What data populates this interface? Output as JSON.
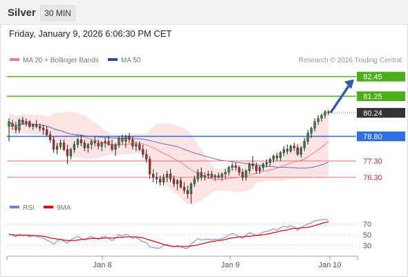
{
  "header": {
    "symbol": "Silver",
    "timeframe": "30 MIN"
  },
  "datetime": "Friday, January 9, 2026 6:06:30 PM CET",
  "legend": {
    "ma20_label": "MA 20 + Bollinger Bands",
    "ma50_label": "MA 50",
    "credit": "Research © 2026 Trading Central",
    "rsi_label": "RSI",
    "ma9_label": "9MA"
  },
  "colors": {
    "candle_up": "#2b8a3e",
    "candle_down": "#c92a2a",
    "bollinger_fill": "#fde3e3",
    "ma20": "#f08080",
    "ma50": "#5b6fb5",
    "resistance": "#4caf1a",
    "pivot": "#2f6fe0",
    "support": "#e57373",
    "last_price": "#333333",
    "rsi": "#6b86d6",
    "rsi_ma": "#dd1111",
    "arrow": "#2f5ea8"
  },
  "chart_data": [
    {
      "type": "candlestick",
      "title": "",
      "ylim": [
        75.2,
        82.9
      ],
      "x_labels": [
        "Jan 8",
        "Jan 9",
        "Jan 10"
      ],
      "levels": [
        {
          "name": "resistance-2",
          "value": 82.45,
          "label": "82.45",
          "kind": "resistance"
        },
        {
          "name": "resistance-1",
          "value": 81.25,
          "label": "81.25",
          "kind": "resistance"
        },
        {
          "name": "last-price",
          "value": 80.24,
          "label": "80.24",
          "kind": "last"
        },
        {
          "name": "pivot",
          "value": 78.8,
          "label": "78.80",
          "kind": "pivot"
        },
        {
          "name": "support-1",
          "value": 77.3,
          "label": "77.30",
          "kind": "support"
        },
        {
          "name": "support-2",
          "value": 76.3,
          "label": "76.30",
          "kind": "support"
        }
      ],
      "ohlc": [
        [
          79.4,
          79.9,
          78.5,
          79.7
        ],
        [
          79.6,
          79.8,
          79.2,
          79.4
        ],
        [
          79.4,
          79.7,
          79.0,
          79.2
        ],
        [
          79.2,
          79.9,
          79.0,
          79.8
        ],
        [
          79.8,
          80.0,
          79.5,
          79.6
        ],
        [
          79.6,
          79.9,
          79.4,
          79.7
        ],
        [
          79.7,
          79.8,
          79.3,
          79.4
        ],
        [
          79.4,
          79.6,
          79.2,
          79.5
        ],
        [
          79.5,
          79.8,
          79.3,
          79.4
        ],
        [
          79.4,
          79.6,
          79.1,
          79.3
        ],
        [
          79.3,
          79.5,
          78.9,
          79.2
        ],
        [
          79.2,
          79.4,
          78.8,
          78.9
        ],
        [
          78.9,
          79.1,
          78.4,
          78.6
        ],
        [
          78.6,
          78.8,
          77.8,
          78.0
        ],
        [
          78.0,
          78.4,
          77.7,
          78.2
        ],
        [
          78.2,
          78.6,
          78.0,
          78.4
        ],
        [
          78.4,
          78.6,
          77.9,
          78.0
        ],
        [
          78.0,
          78.3,
          77.1,
          77.6
        ],
        [
          77.6,
          78.1,
          77.4,
          78.0
        ],
        [
          78.0,
          78.5,
          77.8,
          78.3
        ],
        [
          78.3,
          78.7,
          78.1,
          78.6
        ],
        [
          78.6,
          78.9,
          78.2,
          78.4
        ],
        [
          78.4,
          78.6,
          77.9,
          78.1
        ],
        [
          78.1,
          78.4,
          77.8,
          78.3
        ],
        [
          78.3,
          78.6,
          78.0,
          78.5
        ],
        [
          78.5,
          78.8,
          78.2,
          78.4
        ],
        [
          78.4,
          78.6,
          78.0,
          78.2
        ],
        [
          78.2,
          78.5,
          77.9,
          78.4
        ],
        [
          78.4,
          78.7,
          78.1,
          78.5
        ],
        [
          78.5,
          78.8,
          78.2,
          78.3
        ],
        [
          78.3,
          78.6,
          77.9,
          78.0
        ],
        [
          78.0,
          78.4,
          77.6,
          78.3
        ],
        [
          78.3,
          78.8,
          78.1,
          78.7
        ],
        [
          78.7,
          78.9,
          78.3,
          78.5
        ],
        [
          78.5,
          78.9,
          78.1,
          78.8
        ],
        [
          78.8,
          79.0,
          78.4,
          78.6
        ],
        [
          78.6,
          78.8,
          78.0,
          78.2
        ],
        [
          78.2,
          78.5,
          77.9,
          78.3
        ],
        [
          78.3,
          78.5,
          77.9,
          78.0
        ],
        [
          78.0,
          78.3,
          77.5,
          77.7
        ],
        [
          77.7,
          78.0,
          77.2,
          77.4
        ],
        [
          77.4,
          77.6,
          76.2,
          76.5
        ],
        [
          76.5,
          76.8,
          76.0,
          76.3
        ],
        [
          76.3,
          76.6,
          75.9,
          76.2
        ],
        [
          76.2,
          76.4,
          75.8,
          76.0
        ],
        [
          76.0,
          76.5,
          75.8,
          76.3
        ],
        [
          76.3,
          76.7,
          76.0,
          76.5
        ],
        [
          76.5,
          76.8,
          76.0,
          76.2
        ],
        [
          76.2,
          76.4,
          75.7,
          75.9
        ],
        [
          75.9,
          76.2,
          75.5,
          76.1
        ],
        [
          76.1,
          76.3,
          75.6,
          75.7
        ],
        [
          75.7,
          76.0,
          75.3,
          75.5
        ],
        [
          75.5,
          75.8,
          75.0,
          75.3
        ],
        [
          75.3,
          76.0,
          74.7,
          75.9
        ],
        [
          75.9,
          76.4,
          75.7,
          76.2
        ],
        [
          76.2,
          76.8,
          76.0,
          76.6
        ],
        [
          76.6,
          76.9,
          76.1,
          76.3
        ],
        [
          76.3,
          76.6,
          76.1,
          76.4
        ],
        [
          76.4,
          76.7,
          76.2,
          76.5
        ],
        [
          76.5,
          76.7,
          76.2,
          76.3
        ],
        [
          76.3,
          76.5,
          76.1,
          76.4
        ],
        [
          76.4,
          76.6,
          76.2,
          76.3
        ],
        [
          76.3,
          76.6,
          76.1,
          76.5
        ],
        [
          76.5,
          76.8,
          76.2,
          76.6
        ],
        [
          76.6,
          77.0,
          76.4,
          76.9
        ],
        [
          76.9,
          77.2,
          76.7,
          77.0
        ],
        [
          77.0,
          77.2,
          76.7,
          76.9
        ],
        [
          76.9,
          77.0,
          76.4,
          76.6
        ],
        [
          76.6,
          76.8,
          76.1,
          76.3
        ],
        [
          76.3,
          76.8,
          76.1,
          76.7
        ],
        [
          76.7,
          77.2,
          76.5,
          77.1
        ],
        [
          77.1,
          77.6,
          76.8,
          77.0
        ],
        [
          77.0,
          77.2,
          76.5,
          76.7
        ],
        [
          76.7,
          77.0,
          76.5,
          76.9
        ],
        [
          76.9,
          77.2,
          76.7,
          77.1
        ],
        [
          77.1,
          77.4,
          76.9,
          77.2
        ],
        [
          77.2,
          77.5,
          77.0,
          77.4
        ],
        [
          77.4,
          77.7,
          77.2,
          77.6
        ],
        [
          77.6,
          77.8,
          77.3,
          77.5
        ],
        [
          77.5,
          77.9,
          77.3,
          77.8
        ],
        [
          77.8,
          78.2,
          77.6,
          78.0
        ],
        [
          78.0,
          78.3,
          77.7,
          77.9
        ],
        [
          77.9,
          78.3,
          77.8,
          78.2
        ],
        [
          78.2,
          78.4,
          77.9,
          78.1
        ],
        [
          78.1,
          78.3,
          77.6,
          77.7
        ],
        [
          77.7,
          78.2,
          77.5,
          78.1
        ],
        [
          78.1,
          78.7,
          77.9,
          78.5
        ],
        [
          78.5,
          79.2,
          78.3,
          79.0
        ],
        [
          79.0,
          79.4,
          78.7,
          79.3
        ],
        [
          79.3,
          79.9,
          79.1,
          79.7
        ],
        [
          79.7,
          80.1,
          79.5,
          79.9
        ],
        [
          79.9,
          80.2,
          79.7,
          80.1
        ],
        [
          80.1,
          80.4,
          79.9,
          80.3
        ],
        [
          80.3,
          80.4,
          80.1,
          80.24
        ]
      ]
    },
    {
      "type": "line",
      "title": "",
      "ylim": [
        15,
        90
      ],
      "y_ticks": [
        "70",
        "50",
        "30"
      ],
      "series": [
        {
          "name": "RSI",
          "values": [
            52,
            49,
            46,
            51,
            48,
            50,
            46,
            49,
            47,
            45,
            44,
            40,
            37,
            32,
            38,
            42,
            38,
            34,
            40,
            44,
            47,
            43,
            40,
            44,
            47,
            44,
            41,
            45,
            47,
            43,
            39,
            44,
            50,
            47,
            51,
            48,
            43,
            45,
            41,
            37,
            35,
            27,
            26,
            25,
            25,
            30,
            32,
            29,
            27,
            30,
            27,
            25,
            24,
            33,
            37,
            43,
            40,
            41,
            42,
            40,
            42,
            41,
            43,
            45,
            50,
            52,
            50,
            46,
            43,
            49,
            54,
            52,
            48,
            51,
            55,
            56,
            58,
            61,
            58,
            63,
            66,
            64,
            67,
            65,
            58,
            63,
            67,
            70,
            72,
            76,
            77,
            78,
            79,
            77
          ]
        },
        {
          "name": "9MA",
          "values": [
            50,
            50,
            49,
            49,
            49,
            49,
            49,
            48,
            48,
            48,
            47,
            46,
            44,
            43,
            42,
            41,
            40,
            39,
            39,
            39,
            40,
            41,
            42,
            42,
            43,
            43,
            43,
            43,
            44,
            44,
            44,
            44,
            45,
            45,
            46,
            46,
            46,
            46,
            45,
            44,
            42,
            40,
            38,
            36,
            34,
            32,
            30,
            29,
            28,
            28,
            28,
            28,
            28,
            29,
            30,
            31,
            33,
            34,
            36,
            37,
            38,
            39,
            40,
            41,
            43,
            44,
            45,
            46,
            46,
            47,
            47,
            48,
            49,
            49,
            50,
            51,
            52,
            54,
            55,
            57,
            58,
            59,
            61,
            62,
            62,
            63,
            63,
            64,
            65,
            67,
            69,
            71,
            73,
            74
          ]
        }
      ]
    }
  ]
}
